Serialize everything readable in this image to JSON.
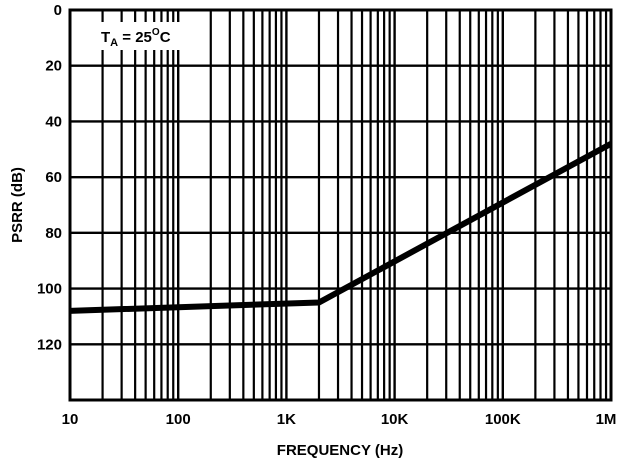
{
  "chart_data": {
    "type": "line",
    "title": "",
    "xlabel": "FREQUENCY (Hz)",
    "ylabel": "PSRR (dB)",
    "xscale": "log",
    "xlim": [
      10,
      1000000
    ],
    "ylim": [
      0,
      140
    ],
    "y_inverted": true,
    "grid": true,
    "x_tick_labels": [
      "10",
      "100",
      "1K",
      "10K",
      "100K",
      "1M"
    ],
    "x_tick_values": [
      10,
      100,
      1000,
      10000,
      100000,
      1000000
    ],
    "y_tick_labels": [
      "0",
      "20",
      "40",
      "60",
      "80",
      "100",
      "120"
    ],
    "y_tick_values": [
      0,
      20,
      40,
      60,
      80,
      100,
      120
    ],
    "annotation": {
      "t": "T",
      "sub": "A",
      "rest": " = 25",
      "deg": "O",
      "unit": "C"
    },
    "series": [
      {
        "x": [
          10,
          2000,
          1000000
        ],
        "y": [
          108,
          105,
          48
        ]
      }
    ]
  }
}
